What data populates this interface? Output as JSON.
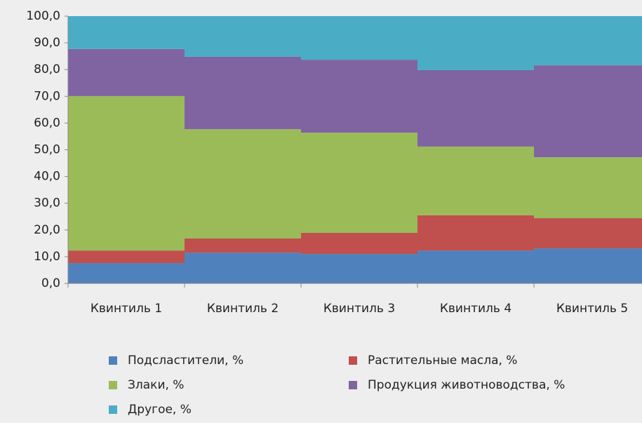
{
  "chart_data": {
    "type": "stacked_bar",
    "categories": [
      "Квинтиль 1",
      "Квинтиль 2",
      "Квинтиль 3",
      "Квинтиль 4",
      "Квинтиль 5"
    ],
    "series": [
      {
        "name": "Подсластители, %",
        "color": "#4f81bd",
        "values": [
          7.6,
          11.5,
          11.0,
          12.3,
          13.1
        ]
      },
      {
        "name": "Растительные масла, %",
        "color": "#c0504d",
        "values": [
          4.7,
          5.3,
          7.9,
          13.2,
          11.3
        ]
      },
      {
        "name": "Злаки, %",
        "color": "#9bbb59",
        "values": [
          57.8,
          40.9,
          37.5,
          25.7,
          22.8
        ]
      },
      {
        "name": "Продукция животноводства, %",
        "color": "#8064a2",
        "values": [
          17.6,
          27.1,
          27.3,
          28.6,
          34.4
        ]
      },
      {
        "name": "Другое, %",
        "color": "#4bacc6",
        "values": [
          12.3,
          15.2,
          16.3,
          20.2,
          18.4
        ]
      }
    ],
    "ylim": [
      0,
      100
    ],
    "yticks": [
      {
        "value": 0,
        "label": "0,0"
      },
      {
        "value": 10,
        "label": "10,0"
      },
      {
        "value": 20,
        "label": "20,0"
      },
      {
        "value": 30,
        "label": "30,0"
      },
      {
        "value": 40,
        "label": "40,0"
      },
      {
        "value": 50,
        "label": "50,0"
      },
      {
        "value": 60,
        "label": "60,0"
      },
      {
        "value": 70,
        "label": "70,0"
      },
      {
        "value": 80,
        "label": "80,0"
      },
      {
        "value": 90,
        "label": "90,0"
      },
      {
        "value": 100,
        "label": "100,0"
      }
    ],
    "legend": "bottom"
  }
}
